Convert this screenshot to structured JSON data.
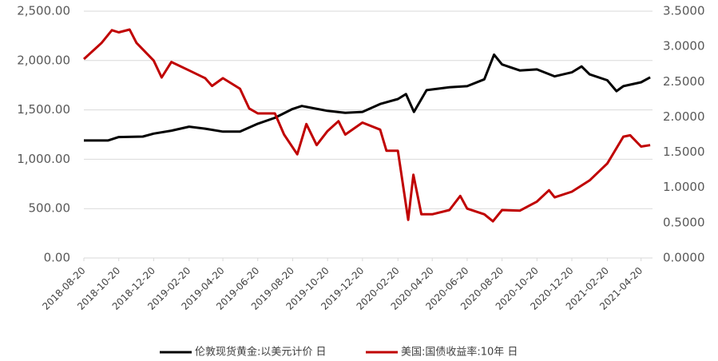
{
  "chart_data": {
    "type": "line",
    "x_type": "date",
    "xlim": [
      "2018-08-20",
      "2021-05-10"
    ],
    "xticks": [
      "2018-08-20",
      "2018-10-20",
      "2018-12-20",
      "2019-02-20",
      "2019-04-20",
      "2019-06-20",
      "2019-08-20",
      "2019-10-20",
      "2019-12-20",
      "2020-02-20",
      "2020-04-20",
      "2020-06-20",
      "2020-08-20",
      "2020-10-20",
      "2020-12-20",
      "2021-02-20",
      "2021-04-20"
    ],
    "ylim": [
      0,
      2500
    ],
    "yticks": [
      {
        "value": 0,
        "label": "0.00"
      },
      {
        "value": 500,
        "label": "500.00"
      },
      {
        "value": 1000,
        "label": "1,000.00"
      },
      {
        "value": 1500,
        "label": "1,500.00"
      },
      {
        "value": 2000,
        "label": "2,000.00"
      },
      {
        "value": 2500,
        "label": "2,500.00"
      }
    ],
    "y2lim": [
      0,
      3.5
    ],
    "y2ticks": [
      {
        "value": 0,
        "label": "0.0000"
      },
      {
        "value": 0.5,
        "label": "0.5000"
      },
      {
        "value": 1,
        "label": "1.0000"
      },
      {
        "value": 1.5,
        "label": "1.5000"
      },
      {
        "value": 2,
        "label": "2.0000"
      },
      {
        "value": 2.5,
        "label": "2.5000"
      },
      {
        "value": 3,
        "label": "3.0000"
      },
      {
        "value": 3.5,
        "label": "3.5000"
      }
    ],
    "grid": true,
    "legend": "bottom",
    "series": [
      {
        "name": "伦敦现货黄金:以美元计价 日",
        "color": "#000000",
        "axis": "y",
        "x": [
          "2018-08-20",
          "2018-10-01",
          "2018-10-20",
          "2018-12-01",
          "2018-12-20",
          "2019-01-20",
          "2019-02-20",
          "2019-03-20",
          "2019-04-20",
          "2019-05-20",
          "2019-06-20",
          "2019-07-20",
          "2019-08-20",
          "2019-09-05",
          "2019-10-20",
          "2019-11-20",
          "2019-12-20",
          "2020-01-20",
          "2020-02-20",
          "2020-03-05",
          "2020-03-19",
          "2020-04-10",
          "2020-05-20",
          "2020-06-20",
          "2020-07-20",
          "2020-08-06",
          "2020-08-20",
          "2020-09-20",
          "2020-10-20",
          "2020-11-20",
          "2020-12-20",
          "2021-01-06",
          "2021-01-20",
          "2021-02-20",
          "2021-03-08",
          "2021-03-20",
          "2021-04-20",
          "2021-05-06"
        ],
        "values": [
          1190,
          1190,
          1225,
          1230,
          1260,
          1290,
          1330,
          1310,
          1280,
          1280,
          1360,
          1420,
          1510,
          1540,
          1490,
          1470,
          1480,
          1560,
          1610,
          1660,
          1480,
          1700,
          1730,
          1740,
          1810,
          2060,
          1960,
          1900,
          1910,
          1840,
          1880,
          1940,
          1860,
          1800,
          1690,
          1740,
          1780,
          1830
        ]
      },
      {
        "name": "美国:国债收益率:10年 日",
        "color": "#c00000",
        "axis": "y2",
        "x": [
          "2018-08-20",
          "2018-09-20",
          "2018-10-08",
          "2018-10-20",
          "2018-11-08",
          "2018-11-20",
          "2018-12-20",
          "2019-01-03",
          "2019-01-20",
          "2019-02-20",
          "2019-03-20",
          "2019-04-01",
          "2019-04-20",
          "2019-05-20",
          "2019-06-05",
          "2019-06-20",
          "2019-07-20",
          "2019-08-05",
          "2019-08-28",
          "2019-09-13",
          "2019-10-01",
          "2019-10-20",
          "2019-11-08",
          "2019-11-20",
          "2019-12-20",
          "2020-01-20",
          "2020-01-31",
          "2020-02-20",
          "2020-03-09",
          "2020-03-18",
          "2020-04-01",
          "2020-04-20",
          "2020-05-20",
          "2020-06-08",
          "2020-06-20",
          "2020-07-20",
          "2020-08-04",
          "2020-08-20",
          "2020-09-20",
          "2020-10-20",
          "2020-11-10",
          "2020-11-20",
          "2020-12-20",
          "2021-01-20",
          "2021-02-20",
          "2021-03-20",
          "2021-04-01",
          "2021-04-20",
          "2021-05-06"
        ],
        "values": [
          2.82,
          3.05,
          3.23,
          3.2,
          3.24,
          3.05,
          2.8,
          2.56,
          2.78,
          2.66,
          2.55,
          2.44,
          2.55,
          2.4,
          2.12,
          2.05,
          2.05,
          1.75,
          1.47,
          1.9,
          1.6,
          1.8,
          1.94,
          1.75,
          1.92,
          1.82,
          1.52,
          1.52,
          0.54,
          1.18,
          0.62,
          0.62,
          0.68,
          0.88,
          0.7,
          0.62,
          0.52,
          0.68,
          0.67,
          0.8,
          0.96,
          0.86,
          0.94,
          1.1,
          1.34,
          1.72,
          1.74,
          1.58,
          1.6
        ]
      }
    ]
  }
}
